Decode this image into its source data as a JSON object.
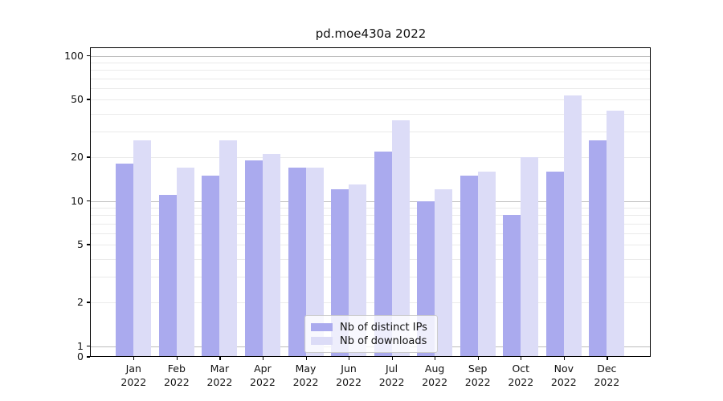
{
  "title": "pd.moe430a 2022",
  "chart_data": {
    "type": "bar",
    "title": "pd.moe430a 2022",
    "yscale": "symlog",
    "grid": true,
    "categories": [
      "Jan",
      "Feb",
      "Mar",
      "Apr",
      "May",
      "Jun",
      "Jul",
      "Aug",
      "Sep",
      "Oct",
      "Nov",
      "Dec"
    ],
    "year_label": "2022",
    "series": [
      {
        "name": "Nb of distinct IPs",
        "color": "#aaaaee",
        "values": [
          18,
          11,
          15,
          19,
          17,
          12,
          22,
          10,
          15,
          8,
          16,
          26
        ]
      },
      {
        "name": "Nb of downloads",
        "color": "#dcdcf7",
        "values": [
          26,
          17,
          26,
          21,
          17,
          13,
          36,
          12,
          16,
          20,
          53,
          42
        ]
      }
    ],
    "yticks": [
      100,
      50,
      20,
      10,
      5,
      2,
      1,
      0
    ],
    "minor_gridlines": [
      2,
      3,
      4,
      5,
      6,
      7,
      8,
      9,
      20,
      30,
      40,
      50,
      60,
      70,
      80,
      90
    ],
    "major_gridlines": [
      1,
      10,
      100
    ],
    "ylim": [
      0,
      130
    ],
    "legend_position": "lower center",
    "legend_colors": {
      "major": "#bdbdbd",
      "minor": "#eaeaea"
    }
  }
}
